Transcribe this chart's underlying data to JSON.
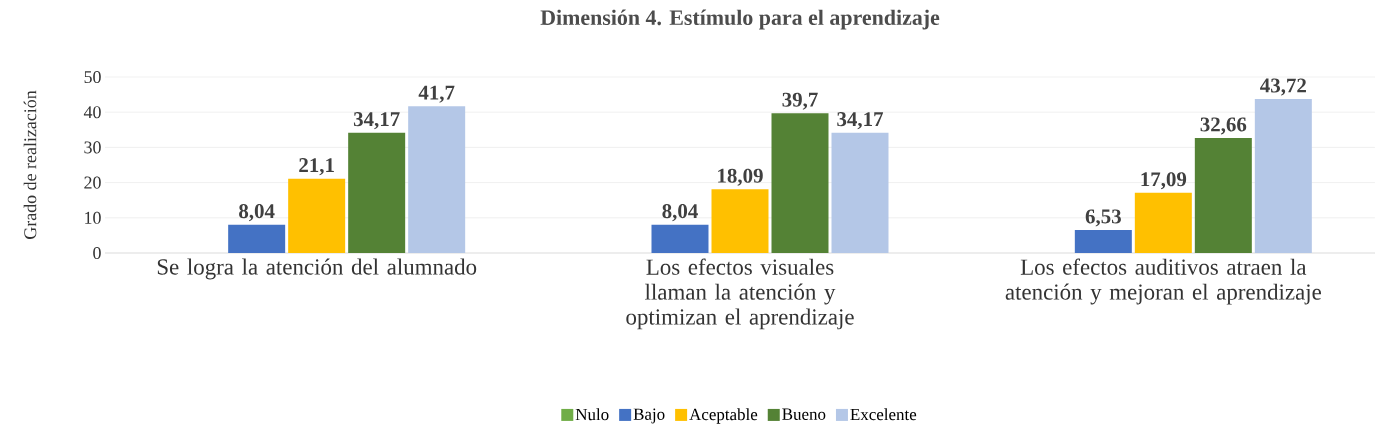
{
  "chart_data": {
    "type": "bar",
    "title": "Dimensión 4. Estímulo para el aprendizaje",
    "ylabel": "Grado de realización",
    "categories": [
      "Se logra la atención del alumnado",
      "Los efectos visuales llaman la atención y optimizan el aprendizaje",
      "Los efectos auditivos atraen la atención y mejoran el aprendizaje"
    ],
    "series": [
      {
        "name": "Nulo",
        "color": "#70ad47",
        "values": [
          0,
          0,
          0
        ],
        "value_labels": [
          null,
          null,
          null
        ]
      },
      {
        "name": "Bajo",
        "color": "#4472c4",
        "values": [
          8.04,
          8.04,
          6.53
        ],
        "value_labels": [
          "8,04",
          "8,04",
          "6,53"
        ]
      },
      {
        "name": "Aceptable",
        "color": "#ffc000",
        "values": [
          21.1,
          18.09,
          17.09
        ],
        "value_labels": [
          "21,1",
          "18,09",
          "17,09"
        ]
      },
      {
        "name": "Bueno",
        "color": "#548235",
        "values": [
          34.17,
          39.7,
          32.66
        ],
        "value_labels": [
          "34,17",
          "39,7",
          "32,66"
        ]
      },
      {
        "name": "Excelente",
        "color": "#b4c7e7",
        "values": [
          41.7,
          34.17,
          43.72
        ],
        "value_labels": [
          "41,7",
          "34,17",
          "43,72"
        ]
      }
    ],
    "ylim": [
      0,
      50
    ],
    "yticks": [
      0,
      10,
      20,
      30,
      40,
      50
    ],
    "grid": "y",
    "legend": "bottom"
  }
}
